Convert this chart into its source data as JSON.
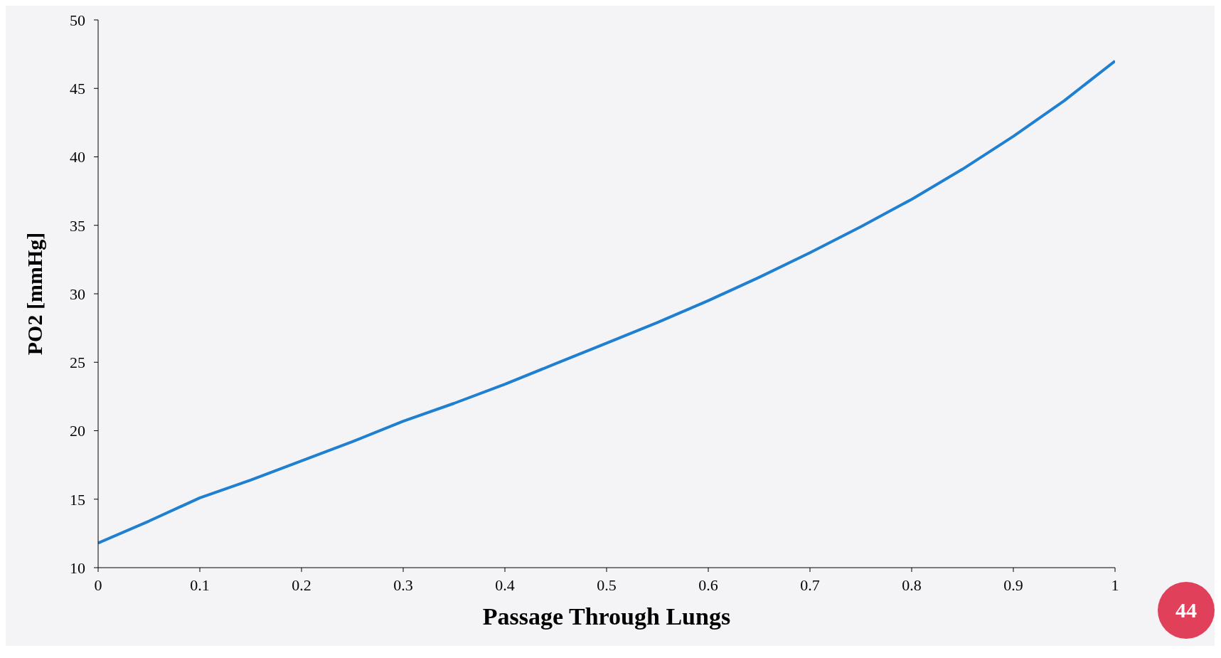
{
  "chart_data": {
    "type": "line",
    "xlabel": "Passage Through Lungs",
    "ylabel": "PO2 [mmHg]",
    "annotations": [
      "44"
    ],
    "x": [
      0,
      0.05,
      0.1,
      0.15,
      0.2,
      0.25,
      0.3,
      0.35,
      0.4,
      0.45,
      0.5,
      0.55,
      0.6,
      0.65,
      0.7,
      0.75,
      0.8,
      0.85,
      0.9,
      0.95,
      1
    ],
    "series": [
      {
        "color": "#1f7fd0",
        "values": [
          11.8,
          13.4,
          15.1,
          16.4,
          17.8,
          19.2,
          20.7,
          22.0,
          23.4,
          24.9,
          26.4,
          27.9,
          29.5,
          31.2,
          33.0,
          34.9,
          36.9,
          39.1,
          41.5,
          44.1,
          47.0
        ]
      }
    ],
    "xlim": [
      0,
      1
    ],
    "xticks": [
      0,
      0.1,
      0.2,
      0.3,
      0.4,
      0.5,
      0.6,
      0.7,
      0.8,
      0.9,
      1
    ],
    "ylim": [
      10,
      50
    ],
    "yticks": [
      10,
      15,
      20,
      25,
      30,
      35,
      40,
      45,
      50
    ],
    "grid": false,
    "legend": false,
    "marker": "none",
    "line_style": "solid"
  }
}
